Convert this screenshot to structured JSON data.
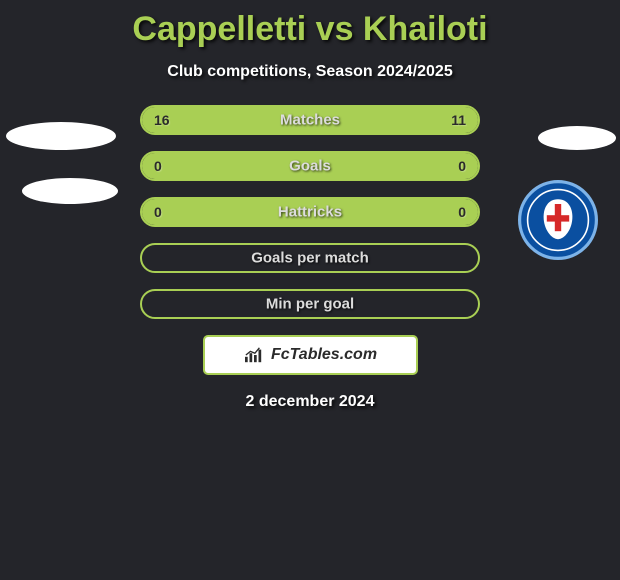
{
  "title": "Cappelletti vs Khailoti",
  "subtitle": "Club competitions, Season 2024/2025",
  "date": "2 december 2024",
  "logo_text": "FcTables.com",
  "colors": {
    "accent": "#a9cf54",
    "bg": "#24252a",
    "badge_blue": "#0a4fa0",
    "badge_red": "#d62828",
    "badge_border": "#7db3e8"
  },
  "bars": [
    {
      "label": "Matches",
      "left_val": "16",
      "right_val": "11",
      "left_fill_pct": 50,
      "right_fill_pct": 50
    },
    {
      "label": "Goals",
      "left_val": "0",
      "right_val": "0",
      "left_fill_pct": 50,
      "right_fill_pct": 50
    },
    {
      "label": "Hattricks",
      "left_val": "0",
      "right_val": "0",
      "left_fill_pct": 50,
      "right_fill_pct": 50
    },
    {
      "label": "Goals per match",
      "left_val": "",
      "right_val": "",
      "left_fill_pct": 0,
      "right_fill_pct": 0
    },
    {
      "label": "Min per goal",
      "left_val": "",
      "right_val": "",
      "left_fill_pct": 0,
      "right_fill_pct": 0
    }
  ]
}
